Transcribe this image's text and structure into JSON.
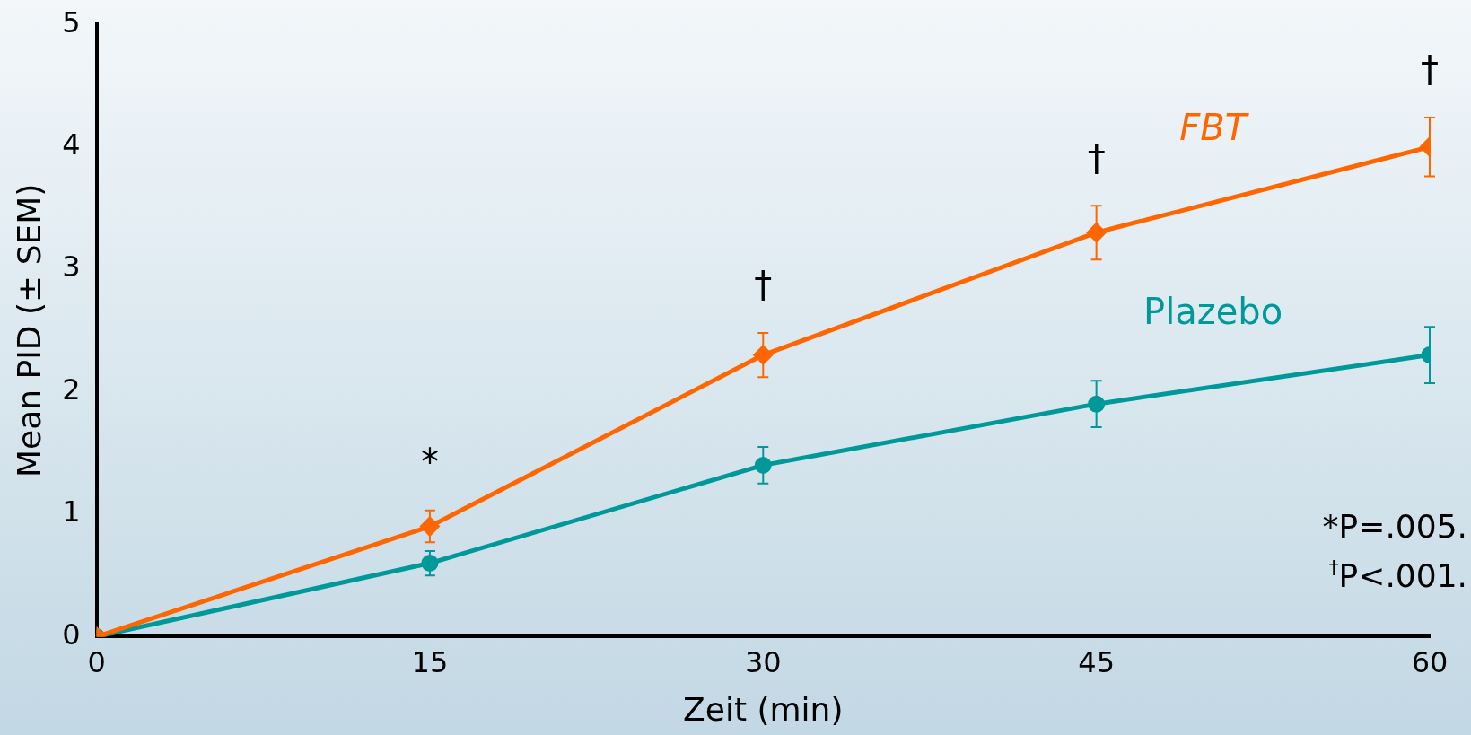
{
  "chart_data": {
    "type": "line",
    "xlabel": "Zeit (min)",
    "ylabel": "Mean PID (± SEM)",
    "x": [
      0,
      15,
      30,
      45,
      60
    ],
    "series": [
      {
        "name": "FBT",
        "color": "#ff6600",
        "marker": "diamond",
        "values": [
          0,
          0.9,
          2.3,
          3.3,
          4.0
        ],
        "errors": [
          null,
          0.13,
          0.18,
          0.22,
          0.24
        ]
      },
      {
        "name": "Plazebo",
        "color": "#009999",
        "marker": "circle",
        "values": [
          0,
          0.6,
          1.4,
          1.9,
          2.3
        ],
        "errors": [
          null,
          0.1,
          0.15,
          0.19,
          0.23
        ]
      }
    ],
    "xlim": [
      0,
      60
    ],
    "xticks": [
      0,
      15,
      30,
      45,
      60
    ],
    "ylim": [
      0,
      5
    ],
    "yticks": [
      0,
      1,
      2,
      3,
      4,
      5
    ],
    "grid": false,
    "legend": false,
    "annotations": [
      "*",
      "†",
      "†",
      "†",
      "*P=.005.",
      "$^{†}$P<.001."
    ]
  }
}
